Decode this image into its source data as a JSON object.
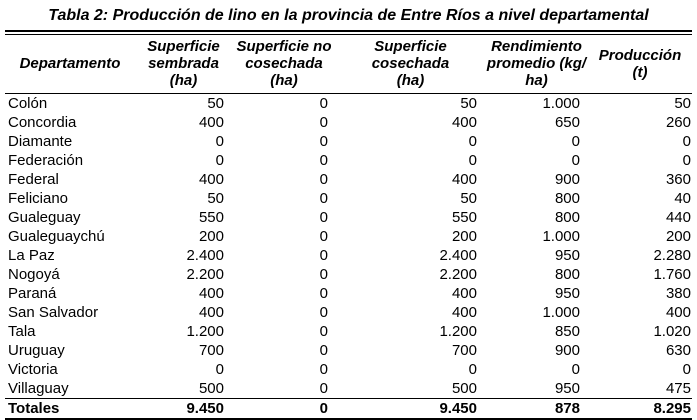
{
  "title": "Tabla 2: Producción de lino en la provincia de Entre Ríos a nivel departamental",
  "table": {
    "header": [
      "Departamento",
      "Superficie\nsembrada\n(ha)",
      "Superficie no\ncosechada\n(ha)",
      "Superficie\ncosechada\n(ha)",
      "Rendimiento\npromedio (kg/\nha)",
      "Producción\n(t)"
    ],
    "rows": [
      [
        "Colón",
        "50",
        "0",
        "50",
        "1.000",
        "50"
      ],
      [
        "Concordia",
        "400",
        "0",
        "400",
        "650",
        "260"
      ],
      [
        "Diamante",
        "0",
        "0",
        "0",
        "0",
        "0"
      ],
      [
        "Federación",
        "0",
        "0",
        "0",
        "0",
        "0"
      ],
      [
        "Federal",
        "400",
        "0",
        "400",
        "900",
        "360"
      ],
      [
        "Feliciano",
        "50",
        "0",
        "50",
        "800",
        "40"
      ],
      [
        "Gualeguay",
        "550",
        "0",
        "550",
        "800",
        "440"
      ],
      [
        "Gualeguaychú",
        "200",
        "0",
        "200",
        "1.000",
        "200"
      ],
      [
        "La Paz",
        "2.400",
        "0",
        "2.400",
        "950",
        "2.280"
      ],
      [
        "Nogoyá",
        "2.200",
        "0",
        "2.200",
        "800",
        "1.760"
      ],
      [
        "Paraná",
        "400",
        "0",
        "400",
        "950",
        "380"
      ],
      [
        "San Salvador",
        "400",
        "0",
        "400",
        "1.000",
        "400"
      ],
      [
        "Tala",
        "1.200",
        "0",
        "1.200",
        "850",
        "1.020"
      ],
      [
        "Uruguay",
        "700",
        "0",
        "700",
        "900",
        "630"
      ],
      [
        "Victoria",
        "0",
        "0",
        "0",
        "0",
        "0"
      ],
      [
        "Villaguay",
        "500",
        "0",
        "500",
        "950",
        "475"
      ]
    ],
    "totals": [
      "Totales",
      "9.450",
      "0",
      "9.450",
      "878",
      "8.295"
    ]
  },
  "colors": {
    "text": "#000000",
    "background": "#ffffff",
    "rule": "#000000"
  }
}
